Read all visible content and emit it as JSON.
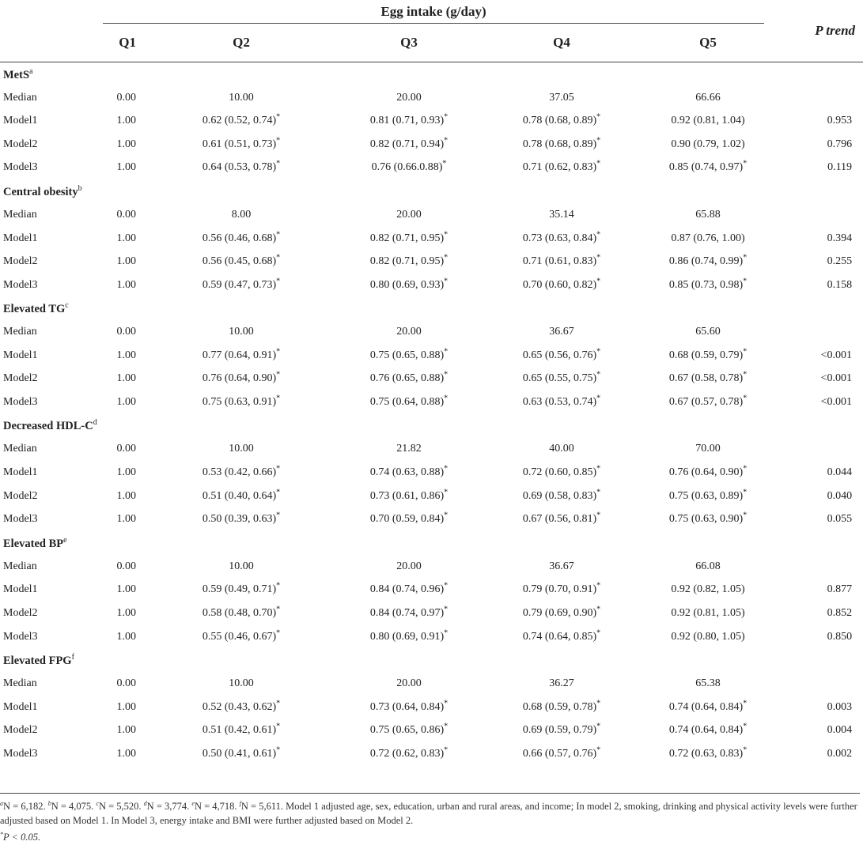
{
  "header": {
    "group_label": "Egg intake (g/day)",
    "p_trend_label": "P trend",
    "columns": [
      "Q1",
      "Q2",
      "Q3",
      "Q4",
      "Q5"
    ]
  },
  "sections": [
    {
      "title": "MetS",
      "sup": "a",
      "rows": [
        {
          "label": "Median",
          "q1": "0.00",
          "q2": "10.00",
          "q3": "20.00",
          "q4": "37.05",
          "q5": "66.66",
          "p": ""
        },
        {
          "label": "Model1",
          "q1": "1.00",
          "q2": "0.62 (0.52, 0.74)",
          "q2s": "*",
          "q3": "0.81 (0.71, 0.93)",
          "q3s": "*",
          "q4": "0.78 (0.68, 0.89)",
          "q4s": "*",
          "q5": "0.92 (0.81, 1.04)",
          "q5s": "",
          "p": "0.953"
        },
        {
          "label": "Model2",
          "q1": "1.00",
          "q2": "0.61 (0.51, 0.73)",
          "q2s": "*",
          "q3": "0.82 (0.71, 0.94)",
          "q3s": "*",
          "q4": "0.78 (0.68, 0.89)",
          "q4s": "*",
          "q5": "0.90 (0.79, 1.02)",
          "q5s": "",
          "p": "0.796"
        },
        {
          "label": "Model3",
          "q1": "1.00",
          "q2": "0.64 (0.53, 0.78)",
          "q2s": "*",
          "q3": "0.76 (0.66.0.88)",
          "q3s": "*",
          "q4": "0.71 (0.62, 0.83)",
          "q4s": "*",
          "q5": "0.85 (0.74, 0.97)",
          "q5s": "*",
          "p": "0.119"
        }
      ]
    },
    {
      "title": "Central obesity",
      "sup": "b",
      "rows": [
        {
          "label": "Median",
          "q1": "0.00",
          "q2": "8.00",
          "q3": "20.00",
          "q4": "35.14",
          "q5": "65.88",
          "p": ""
        },
        {
          "label": "Model1",
          "q1": "1.00",
          "q2": "0.56 (0.46, 0.68)",
          "q2s": "*",
          "q3": "0.82 (0.71, 0.95)",
          "q3s": "*",
          "q4": "0.73 (0.63, 0.84)",
          "q4s": "*",
          "q5": "0.87 (0.76, 1.00)",
          "q5s": "",
          "p": "0.394"
        },
        {
          "label": "Model2",
          "q1": "1.00",
          "q2": "0.56 (0.45, 0.68)",
          "q2s": "*",
          "q3": "0.82 (0.71, 0.95)",
          "q3s": "*",
          "q4": "0.71 (0.61, 0.83)",
          "q4s": "*",
          "q5": "0.86 (0.74, 0.99)",
          "q5s": "*",
          "p": "0.255"
        },
        {
          "label": "Model3",
          "q1": "1.00",
          "q2": "0.59 (0.47, 0.73)",
          "q2s": "*",
          "q3": "0.80 (0.69, 0.93)",
          "q3s": "*",
          "q4": "0.70 (0.60, 0.82)",
          "q4s": "*",
          "q5": "0.85 (0.73, 0.98)",
          "q5s": "*",
          "p": "0.158"
        }
      ]
    },
    {
      "title": "Elevated TG",
      "sup": "c",
      "rows": [
        {
          "label": "Median",
          "q1": "0.00",
          "q2": "10.00",
          "q3": "20.00",
          "q4": "36.67",
          "q5": "65.60",
          "p": ""
        },
        {
          "label": "Model1",
          "q1": "1.00",
          "q2": "0.77 (0.64, 0.91)",
          "q2s": "*",
          "q3": "0.75 (0.65, 0.88)",
          "q3s": "*",
          "q4": "0.65 (0.56, 0.76)",
          "q4s": "*",
          "q5": "0.68 (0.59, 0.79)",
          "q5s": "*",
          "p": "<0.001"
        },
        {
          "label": "Model2",
          "q1": "1.00",
          "q2": "0.76 (0.64, 0.90)",
          "q2s": "*",
          "q3": "0.76 (0.65, 0.88)",
          "q3s": "*",
          "q4": "0.65 (0.55, 0.75)",
          "q4s": "*",
          "q5": "0.67 (0.58, 0.78)",
          "q5s": "*",
          "p": "<0.001"
        },
        {
          "label": "Model3",
          "q1": "1.00",
          "q2": "0.75 (0.63, 0.91)",
          "q2s": "*",
          "q3": "0.75 (0.64, 0.88)",
          "q3s": "*",
          "q4": "0.63 (0.53, 0.74)",
          "q4s": "*",
          "q5": "0.67 (0.57, 0.78)",
          "q5s": "*",
          "p": "<0.001"
        }
      ]
    },
    {
      "title": "Decreased HDL-C",
      "sup": "d",
      "rows": [
        {
          "label": "Median",
          "q1": "0.00",
          "q2": "10.00",
          "q3": "21.82",
          "q4": "40.00",
          "q5": "70.00",
          "p": ""
        },
        {
          "label": "Model1",
          "q1": "1.00",
          "q2": "0.53 (0.42, 0.66)",
          "q2s": "*",
          "q3": "0.74 (0.63, 0.88)",
          "q3s": "*",
          "q4": "0.72 (0.60, 0.85)",
          "q4s": "*",
          "q5": "0.76 (0.64, 0.90)",
          "q5s": "*",
          "p": "0.044"
        },
        {
          "label": "Model2",
          "q1": "1.00",
          "q2": "0.51 (0.40, 0.64)",
          "q2s": "*",
          "q3": "0.73 (0.61, 0.86)",
          "q3s": "*",
          "q4": "0.69 (0.58, 0.83)",
          "q4s": "*",
          "q5": "0.75 (0.63, 0.89)",
          "q5s": "*",
          "p": "0.040"
        },
        {
          "label": "Model3",
          "q1": "1.00",
          "q2": "0.50 (0.39, 0.63)",
          "q2s": "*",
          "q3": "0.70 (0.59, 0.84)",
          "q3s": "*",
          "q4": "0.67 (0.56, 0.81)",
          "q4s": "*",
          "q5": "0.75 (0.63, 0.90)",
          "q5s": "*",
          "p": "0.055"
        }
      ]
    },
    {
      "title": "Elevated BP",
      "sup": "e",
      "rows": [
        {
          "label": "Median",
          "q1": "0.00",
          "q2": "10.00",
          "q3": "20.00",
          "q4": "36.67",
          "q5": "66.08",
          "p": ""
        },
        {
          "label": "Model1",
          "q1": "1.00",
          "q2": "0.59 (0.49, 0.71)",
          "q2s": "*",
          "q3": "0.84 (0.74, 0.96)",
          "q3s": "*",
          "q4": "0.79 (0.70, 0.91)",
          "q4s": "*",
          "q5": "0.92 (0.82, 1.05)",
          "q5s": "",
          "p": "0.877"
        },
        {
          "label": "Model2",
          "q1": "1.00",
          "q2": "0.58 (0.48, 0.70)",
          "q2s": "*",
          "q3": "0.84 (0.74, 0.97)",
          "q3s": "*",
          "q4": "0.79 (0.69, 0.90)",
          "q4s": "*",
          "q5": "0.92 (0.81, 1.05)",
          "q5s": "",
          "p": "0.852"
        },
        {
          "label": "Model3",
          "q1": "1.00",
          "q2": "0.55 (0.46, 0.67)",
          "q2s": "*",
          "q3": "0.80 (0.69, 0.91)",
          "q3s": "*",
          "q4": "0.74 (0.64, 0.85)",
          "q4s": "*",
          "q5": "0.92 (0.80, 1.05)",
          "q5s": "",
          "p": "0.850"
        }
      ]
    },
    {
      "title": "Elevated FPG",
      "sup": "f",
      "rows": [
        {
          "label": "Median",
          "q1": "0.00",
          "q2": "10.00",
          "q3": "20.00",
          "q4": "36.27",
          "q5": "65.38",
          "p": ""
        },
        {
          "label": "Model1",
          "q1": "1.00",
          "q2": "0.52 (0.43, 0.62)",
          "q2s": "*",
          "q3": "0.73 (0.64, 0.84)",
          "q3s": "*",
          "q4": "0.68 (0.59, 0.78)",
          "q4s": "*",
          "q5": "0.74 (0.64, 0.84)",
          "q5s": "*",
          "p": "0.003"
        },
        {
          "label": "Model2",
          "q1": "1.00",
          "q2": "0.51 (0.42, 0.61)",
          "q2s": "*",
          "q3": "0.75 (0.65, 0.86)",
          "q3s": "*",
          "q4": "0.69 (0.59, 0.79)",
          "q4s": "*",
          "q5": "0.74 (0.64, 0.84)",
          "q5s": "*",
          "p": "0.004"
        },
        {
          "label": "Model3",
          "q1": "1.00",
          "q2": "0.50 (0.41, 0.61)",
          "q2s": "*",
          "q3": "0.72 (0.62, 0.83)",
          "q3s": "*",
          "q4": "0.66 (0.57, 0.76)",
          "q4s": "*",
          "q5": "0.72 (0.63, 0.83)",
          "q5s": "*",
          "p": "0.002"
        }
      ]
    }
  ],
  "footnotes": {
    "counts": [
      {
        "sup": "a",
        "text": "N = 6,182."
      },
      {
        "sup": "b",
        "text": "N = 4,075."
      },
      {
        "sup": "c",
        "text": "N = 5,520."
      },
      {
        "sup": "d",
        "text": "N = 3,774."
      },
      {
        "sup": "e",
        "text": "N = 4,718."
      },
      {
        "sup": "f",
        "text": "N = 5,611."
      }
    ],
    "models_text": "Model 1 adjusted age, sex, education, urban and rural areas, and income; In model 2, smoking, drinking and physical activity levels were further adjusted based on Model 1. In Model 3, energy intake and BMI were further adjusted based on Model 2.",
    "significance_sup": "*",
    "significance_text": "P < 0.05."
  }
}
